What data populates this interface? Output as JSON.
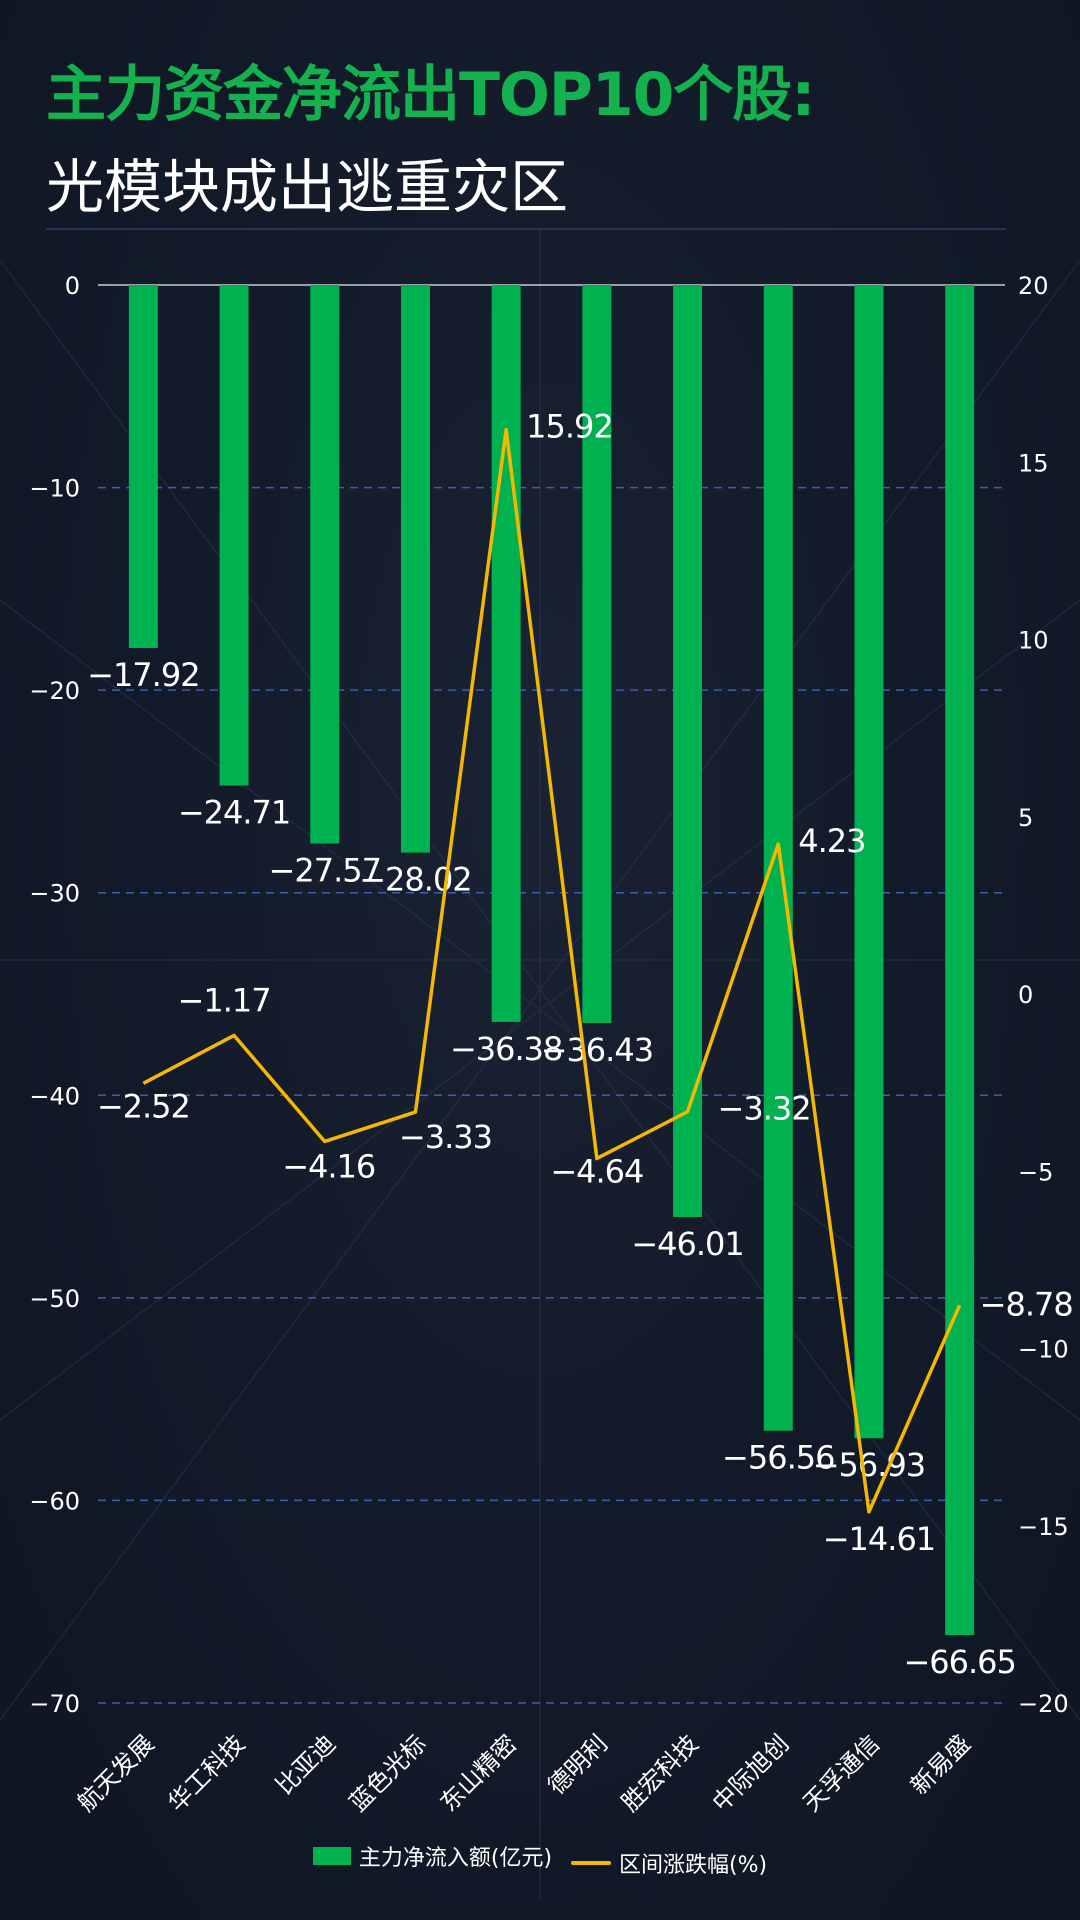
{
  "title": "主力资金净流出TOP10个股:",
  "subtitle": "光模块成出逃重灾区",
  "colors": {
    "bar": "#00b14f",
    "line": "#f5b800",
    "title_accent": "#14b24e",
    "grid": "#3d5fb0",
    "text": "#ffffff"
  },
  "chart_data": {
    "type": "bar",
    "categories": [
      "航天发展",
      "华工科技",
      "比亚迪",
      "蓝色光标",
      "东山精密",
      "德明利",
      "胜宏科技",
      "中际旭创",
      "天孚通信",
      "新易盛"
    ],
    "series": [
      {
        "name": "主力净流入额(亿元)",
        "type": "bar",
        "axis": "left",
        "values": [
          -17.92,
          -24.71,
          -27.57,
          -28.02,
          -36.38,
          -36.43,
          -46.01,
          -56.56,
          -56.93,
          -66.65
        ],
        "labels": [
          "−17.92",
          "−24.71",
          "−27.57",
          "−28.02",
          "−36.38",
          "−36.43",
          "−46.01",
          "−56.56",
          "−56.93",
          "−66.65"
        ]
      },
      {
        "name": "区间涨跌幅(%)",
        "type": "line",
        "axis": "right",
        "values": [
          -2.52,
          -1.17,
          -4.16,
          -3.33,
          15.92,
          -4.64,
          -3.32,
          4.23,
          -14.61,
          -8.78
        ],
        "labels": [
          "−2.52",
          "−1.17",
          "−4.16",
          "−3.33",
          "15.92",
          "−4.64",
          "−3.32",
          "4.23",
          "−14.61",
          "−8.78"
        ]
      }
    ],
    "y_left": {
      "ylim": [
        -70,
        0
      ],
      "ticks": [
        0,
        -10,
        -20,
        -30,
        -40,
        -50,
        -60,
        -70
      ],
      "tick_labels": [
        "0",
        "−10",
        "−20",
        "−30",
        "−40",
        "−50",
        "−60",
        "−70"
      ]
    },
    "y_right": {
      "ylim": [
        -20,
        20
      ],
      "ticks": [
        20,
        15,
        10,
        5,
        0,
        -5,
        -10,
        -15,
        -20
      ],
      "tick_labels": [
        "20",
        "15",
        "10",
        "5",
        "0",
        "−5",
        "−10",
        "−15",
        "−20"
      ]
    },
    "grid": true,
    "legend_position": "bottom-center"
  }
}
